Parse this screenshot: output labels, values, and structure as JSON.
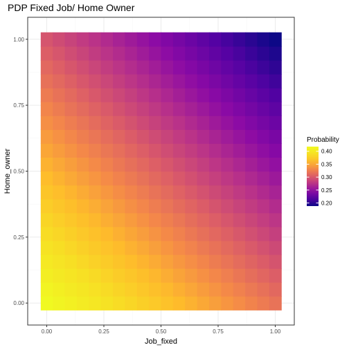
{
  "chart_data": {
    "type": "heatmap",
    "title": "PDP Fixed Job/ Home Owner",
    "xlabel": "Job_fixed",
    "ylabel": "Home_owner",
    "x_ticks": [
      "0.00",
      "0.25",
      "0.50",
      "0.75",
      "1.00"
    ],
    "x_tick_values": [
      0,
      0.25,
      0.5,
      0.75,
      1
    ],
    "y_ticks": [
      "0.00",
      "0.25",
      "0.50",
      "0.75",
      "1.00"
    ],
    "y_tick_values": [
      0,
      0.25,
      0.5,
      0.75,
      1
    ],
    "xlim": [
      -0.0833,
      1.0833
    ],
    "ylim": [
      -0.0833,
      1.0833
    ],
    "grid": "20x20 tiles, x from 0 to 1 step 0.0526, y from 0 to 1 step 0.0526",
    "value_model": {
      "description": "Probability approximately 0.418 at (0,0) decreasing to 0.188 at (1,1)",
      "corner_values": {
        "x0_y0": 0.418,
        "x1_y0": 0.318,
        "x0_y1": 0.298,
        "x1_y1": 0.188
      }
    },
    "legend": {
      "title": "Probability",
      "placement": "right",
      "ticks": [
        "0.40",
        "0.35",
        "0.30",
        "0.25",
        "0.20"
      ],
      "tick_values": [
        0.4,
        0.35,
        0.3,
        0.25,
        0.2
      ],
      "range": [
        0.188,
        0.418
      ],
      "palette": "plasma"
    },
    "colors": {
      "panel_border": "#333333",
      "grid_major": "#ebebeb",
      "grid_minor": "#f5f5f5",
      "text_axis": "#4d4d4d"
    }
  }
}
